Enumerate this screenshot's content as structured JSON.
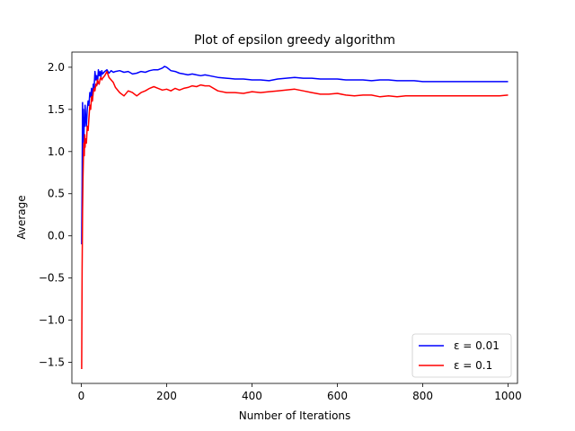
{
  "chart_data": {
    "type": "line",
    "title": "Plot of epsilon greedy algorithm",
    "xlabel": "Number of Iterations",
    "ylabel": "Average",
    "xlim": [
      -22,
      1022
    ],
    "ylim": [
      -1.75,
      2.18
    ],
    "xticks": [
      0,
      200,
      400,
      600,
      800,
      1000
    ],
    "xtick_labels": [
      "0",
      "200",
      "400",
      "600",
      "800",
      "1000"
    ],
    "yticks": [
      -1.5,
      -1.0,
      -0.5,
      0.0,
      0.5,
      1.0,
      1.5,
      2.0
    ],
    "ytick_labels": [
      "−1.5",
      "−1.0",
      "−0.5",
      "0.0",
      "0.5",
      "1.0",
      "1.5",
      "2.0"
    ],
    "grid": false,
    "legend_position": "lower-right",
    "series": [
      {
        "name": "ε = 0.01",
        "color": "#0000ff",
        "x": [
          1,
          2,
          3,
          4,
          5,
          6,
          7,
          8,
          9,
          10,
          12,
          14,
          16,
          18,
          20,
          22,
          24,
          26,
          28,
          30,
          32,
          34,
          36,
          38,
          40,
          42,
          44,
          46,
          48,
          50,
          55,
          60,
          65,
          70,
          75,
          80,
          90,
          100,
          110,
          120,
          130,
          140,
          150,
          160,
          170,
          180,
          190,
          195,
          200,
          210,
          220,
          230,
          240,
          250,
          260,
          270,
          280,
          290,
          300,
          320,
          340,
          360,
          380,
          400,
          420,
          440,
          460,
          480,
          500,
          520,
          540,
          560,
          580,
          600,
          620,
          640,
          660,
          680,
          700,
          720,
          740,
          760,
          780,
          800,
          820,
          840,
          860,
          880,
          900,
          920,
          940,
          960,
          980,
          1000
        ],
        "values": [
          -0.1,
          0.6,
          1.58,
          1.2,
          1.5,
          1.1,
          1.4,
          1.3,
          1.55,
          1.45,
          1.3,
          1.5,
          1.6,
          1.55,
          1.7,
          1.65,
          1.75,
          1.6,
          1.8,
          1.75,
          1.95,
          1.85,
          1.9,
          1.8,
          1.97,
          1.9,
          1.95,
          1.88,
          1.96,
          1.92,
          1.95,
          1.97,
          1.93,
          1.96,
          1.94,
          1.95,
          1.96,
          1.94,
          1.95,
          1.92,
          1.93,
          1.95,
          1.94,
          1.96,
          1.97,
          1.97,
          1.99,
          2.01,
          2.0,
          1.96,
          1.95,
          1.93,
          1.92,
          1.91,
          1.92,
          1.91,
          1.9,
          1.91,
          1.9,
          1.88,
          1.87,
          1.86,
          1.86,
          1.85,
          1.85,
          1.84,
          1.86,
          1.87,
          1.88,
          1.87,
          1.87,
          1.86,
          1.86,
          1.86,
          1.85,
          1.85,
          1.85,
          1.84,
          1.85,
          1.85,
          1.84,
          1.84,
          1.84,
          1.83,
          1.83,
          1.83,
          1.83,
          1.83,
          1.83,
          1.83,
          1.83,
          1.83,
          1.83,
          1.83
        ]
      },
      {
        "name": "ε = 0.1",
        "color": "#ff0000",
        "x": [
          1,
          2,
          3,
          4,
          5,
          6,
          7,
          8,
          9,
          10,
          12,
          14,
          16,
          18,
          20,
          22,
          24,
          26,
          28,
          30,
          32,
          34,
          36,
          38,
          40,
          42,
          44,
          46,
          48,
          50,
          55,
          60,
          65,
          70,
          75,
          80,
          90,
          100,
          110,
          120,
          130,
          140,
          150,
          160,
          170,
          180,
          190,
          200,
          210,
          220,
          230,
          240,
          250,
          260,
          270,
          280,
          290,
          300,
          320,
          340,
          360,
          380,
          400,
          420,
          440,
          460,
          480,
          500,
          520,
          540,
          560,
          580,
          600,
          620,
          640,
          660,
          680,
          700,
          720,
          740,
          760,
          780,
          800,
          820,
          840,
          860,
          880,
          900,
          920,
          940,
          960,
          980,
          1000
        ],
        "values": [
          -1.58,
          -0.4,
          0.3,
          0.7,
          0.9,
          1.1,
          0.95,
          1.2,
          1.05,
          1.15,
          1.1,
          1.3,
          1.25,
          1.4,
          1.55,
          1.5,
          1.65,
          1.6,
          1.7,
          1.75,
          1.72,
          1.8,
          1.78,
          1.85,
          1.82,
          1.8,
          1.86,
          1.88,
          1.85,
          1.87,
          1.9,
          1.95,
          1.88,
          1.85,
          1.82,
          1.76,
          1.7,
          1.66,
          1.72,
          1.7,
          1.66,
          1.7,
          1.72,
          1.75,
          1.77,
          1.75,
          1.73,
          1.74,
          1.72,
          1.75,
          1.73,
          1.75,
          1.76,
          1.78,
          1.77,
          1.79,
          1.78,
          1.78,
          1.72,
          1.7,
          1.7,
          1.69,
          1.71,
          1.7,
          1.71,
          1.72,
          1.73,
          1.74,
          1.72,
          1.7,
          1.68,
          1.68,
          1.69,
          1.67,
          1.66,
          1.67,
          1.67,
          1.65,
          1.66,
          1.65,
          1.66,
          1.66,
          1.66,
          1.66,
          1.66,
          1.66,
          1.66,
          1.66,
          1.66,
          1.66,
          1.66,
          1.66,
          1.67
        ]
      }
    ]
  }
}
